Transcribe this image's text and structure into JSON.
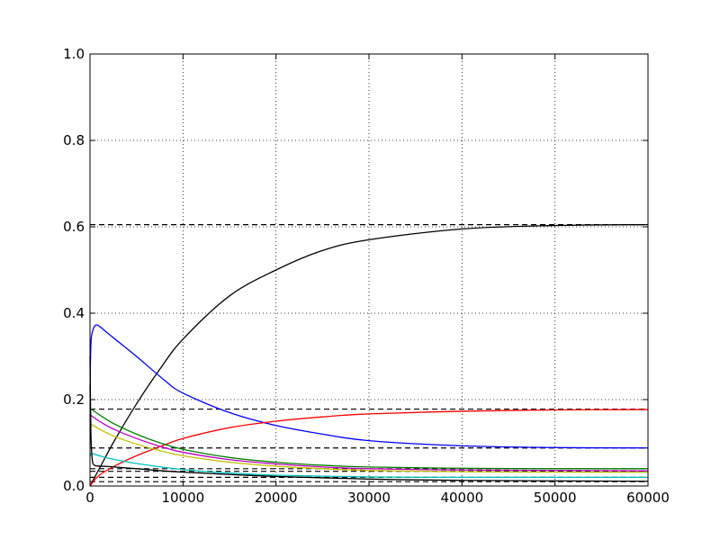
{
  "chart_data": {
    "type": "line",
    "title": "",
    "xlabel": "",
    "ylabel": "",
    "xlim": [
      0,
      60000
    ],
    "ylim": [
      0.0,
      1.0
    ],
    "grid": true,
    "grid_style": "dotted",
    "x_ticks": [
      0,
      10000,
      20000,
      30000,
      40000,
      50000,
      60000
    ],
    "x_tick_labels": [
      "0",
      "10000",
      "20000",
      "30000",
      "40000",
      "50000",
      "60000"
    ],
    "y_ticks": [
      0.0,
      0.2,
      0.4,
      0.6,
      0.8,
      1.0
    ],
    "y_tick_labels": [
      "0.0",
      "0.2",
      "0.4",
      "0.6",
      "0.8",
      "1.0"
    ],
    "series": [
      {
        "color": "#000000",
        "style": "solid",
        "x": [
          0,
          1000,
          2500,
          5000,
          7500,
          10000,
          15000,
          20000,
          25000,
          30000,
          40000,
          50000,
          60000
        ],
        "y": [
          0.0,
          0.04,
          0.1,
          0.19,
          0.27,
          0.34,
          0.44,
          0.5,
          0.545,
          0.57,
          0.595,
          0.603,
          0.605
        ]
      },
      {
        "color": "#0000ff",
        "style": "solid",
        "x": [
          0,
          100,
          300,
          600,
          1000,
          2000,
          5000,
          8000,
          10000,
          15000,
          20000,
          25000,
          30000,
          40000,
          50000,
          60000
        ],
        "y": [
          0.22,
          0.33,
          0.36,
          0.372,
          0.37,
          0.352,
          0.3,
          0.245,
          0.215,
          0.17,
          0.14,
          0.12,
          0.105,
          0.093,
          0.089,
          0.088
        ]
      },
      {
        "color": "#ff0000",
        "style": "solid",
        "x": [
          0,
          1000,
          3000,
          5000,
          8000,
          10000,
          15000,
          20000,
          25000,
          30000,
          40000,
          50000,
          60000
        ],
        "y": [
          0.0,
          0.025,
          0.05,
          0.07,
          0.095,
          0.11,
          0.135,
          0.15,
          0.16,
          0.167,
          0.173,
          0.176,
          0.177
        ]
      },
      {
        "color": "#008000",
        "style": "solid",
        "x": [
          0,
          1000,
          2500,
          5000,
          7500,
          10000,
          15000,
          20000,
          25000,
          30000,
          40000,
          50000,
          60000
        ],
        "y": [
          0.18,
          0.165,
          0.145,
          0.12,
          0.1,
          0.085,
          0.066,
          0.055,
          0.048,
          0.044,
          0.041,
          0.04,
          0.04
        ]
      },
      {
        "color": "#bf00bf",
        "style": "solid",
        "x": [
          0,
          1000,
          2500,
          5000,
          7500,
          10000,
          15000,
          20000,
          25000,
          30000,
          40000,
          50000,
          60000
        ],
        "y": [
          0.165,
          0.15,
          0.132,
          0.11,
          0.092,
          0.078,
          0.061,
          0.051,
          0.044,
          0.04,
          0.037,
          0.036,
          0.035
        ]
      },
      {
        "color": "#bfbf00",
        "style": "solid",
        "x": [
          0,
          1000,
          2500,
          5000,
          7500,
          10000,
          15000,
          20000,
          25000,
          30000,
          40000,
          50000,
          60000
        ],
        "y": [
          0.145,
          0.132,
          0.116,
          0.097,
          0.082,
          0.07,
          0.055,
          0.046,
          0.04,
          0.036,
          0.033,
          0.032,
          0.032
        ]
      },
      {
        "color": "#00bfbf",
        "style": "solid",
        "x": [
          0,
          200,
          1000,
          2500,
          5000,
          10000,
          15000,
          20000,
          30000,
          40000,
          50000,
          60000
        ],
        "y": [
          0.07,
          0.075,
          0.07,
          0.062,
          0.052,
          0.038,
          0.03,
          0.025,
          0.021,
          0.02,
          0.02,
          0.02
        ]
      },
      {
        "color": "#000000",
        "style": "solid",
        "x": [
          0,
          100,
          250,
          500,
          1000,
          2000,
          5000,
          10000,
          20000,
          30000,
          40000,
          60000
        ],
        "y": [
          0.3,
          0.12,
          0.06,
          0.048,
          0.046,
          0.045,
          0.04,
          0.032,
          0.022,
          0.016,
          0.013,
          0.011
        ]
      }
    ],
    "reference_lines": [
      {
        "y": 0.605,
        "color": "#000000",
        "style": "dashed"
      },
      {
        "y": 0.178,
        "color": "#000000",
        "style": "dashed"
      },
      {
        "y": 0.088,
        "color": "#000000",
        "style": "dashed"
      },
      {
        "y": 0.04,
        "color": "#000000",
        "style": "dashed"
      },
      {
        "y": 0.034,
        "color": "#000000",
        "style": "dashed"
      },
      {
        "y": 0.02,
        "color": "#000000",
        "style": "dashed"
      },
      {
        "y": 0.01,
        "color": "#000000",
        "style": "dashed"
      }
    ]
  }
}
